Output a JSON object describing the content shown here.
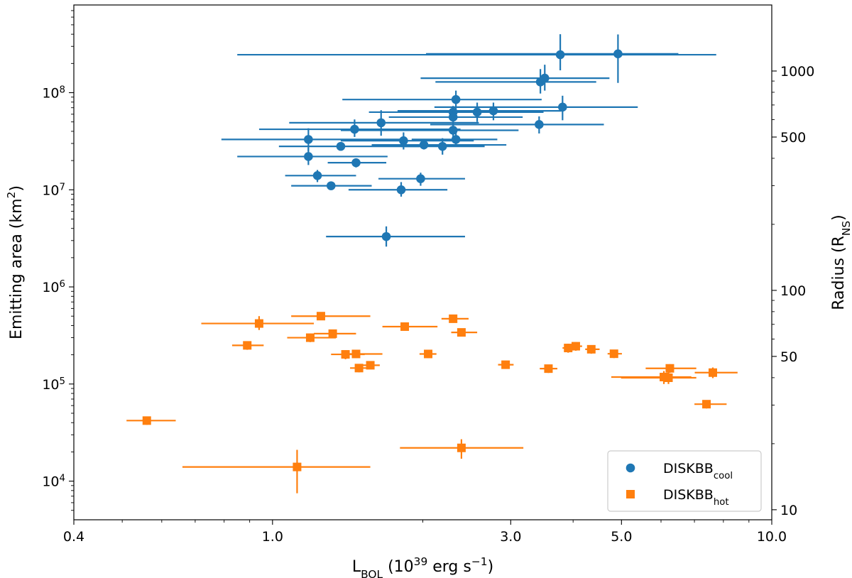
{
  "chart_data": {
    "type": "scatter",
    "xlabel": {
      "main": "L",
      "sub": "BOL",
      "rest": " (10",
      "sup": "39",
      "rest2": " erg s",
      "sup2": "−1",
      "end": ")"
    },
    "ylabel": {
      "main": "Emitting area (km",
      "sup": "2",
      "end": ")"
    },
    "y2label": {
      "main": "Radius (R",
      "sub": "NS",
      "end": ")"
    },
    "xscale": "log",
    "yscale": "log",
    "xlim": [
      0.4,
      10.0
    ],
    "ylim": [
      4000,
      800000000
    ],
    "y2lim": [
      9.0,
      2000
    ],
    "xticks": [
      0.4,
      1.0,
      3.0,
      5.0,
      10.0
    ],
    "xticklabels": [
      "0.4",
      "1.0",
      "3.0",
      "5.0",
      "10.0"
    ],
    "yticks": [
      10000,
      100000,
      1000000,
      10000000,
      100000000
    ],
    "yticklabels": [
      {
        "base": "10",
        "exp": "4"
      },
      {
        "base": "10",
        "exp": "5"
      },
      {
        "base": "10",
        "exp": "6"
      },
      {
        "base": "10",
        "exp": "7"
      },
      {
        "base": "10",
        "exp": "8"
      }
    ],
    "y2ticks": [
      10,
      50,
      100,
      500,
      1000
    ],
    "y2ticklabels": [
      "10",
      "50",
      "100",
      "500",
      "1000"
    ],
    "grid": false,
    "legend": "bottom-right",
    "series": [
      {
        "name": "DISKBB",
        "name_sub": "cool",
        "marker": "circle",
        "color": "#1f77b4",
        "points": [
          [
            3.77,
            246000000,
            0.85,
            7.74,
            170000000,
            400000000
          ],
          [
            4.92,
            251000000,
            2.03,
            6.5,
            126000000,
            398000000
          ],
          [
            3.51,
            141000000,
            1.98,
            4.73,
            105000000,
            194000000
          ],
          [
            3.44,
            129000000,
            2.12,
            4.45,
            98000000,
            175000000
          ],
          [
            2.33,
            85000000,
            1.38,
            3.46,
            66000000,
            105000000
          ],
          [
            3.81,
            71000000,
            2.11,
            5.39,
            52000000,
            93000000
          ],
          [
            2.77,
            65000000,
            1.78,
            3.79,
            52000000,
            79000000
          ],
          [
            2.57,
            63000000,
            1.83,
            3.49,
            50000000,
            79000000
          ],
          [
            2.3,
            63000000,
            1.56,
            3.42,
            53000000,
            73000000
          ],
          [
            2.3,
            56000000,
            1.71,
            3.17,
            45000000,
            70000000
          ],
          [
            1.65,
            49000000,
            1.08,
            2.59,
            36000000,
            66000000
          ],
          [
            3.42,
            47000000,
            2.07,
            4.61,
            38000000,
            57000000
          ],
          [
            1.46,
            42000000,
            0.94,
            2.38,
            35000000,
            53000000
          ],
          [
            2.3,
            41000000,
            1.37,
            3.11,
            35000000,
            48000000
          ],
          [
            1.18,
            33000000,
            0.79,
            1.86,
            25000000,
            43000000
          ],
          [
            1.83,
            32000000,
            1.37,
            2.53,
            26000000,
            39000000
          ],
          [
            2.33,
            33000000,
            1.9,
            2.82,
            28000000,
            39000000
          ],
          [
            1.37,
            28000000,
            1.03,
            1.97,
            26000000,
            31000000
          ],
          [
            2.01,
            29000000,
            1.58,
            2.94,
            26000000,
            32000000
          ],
          [
            2.19,
            28000000,
            1.81,
            2.66,
            23000000,
            34000000
          ],
          [
            1.18,
            22000000,
            0.85,
            1.7,
            18000000,
            27000000
          ],
          [
            1.47,
            19000000,
            1.29,
            1.69,
            17000000,
            20000000
          ],
          [
            1.23,
            14000000,
            1.06,
            1.47,
            12000000,
            16000000
          ],
          [
            1.98,
            13000000,
            1.63,
            2.43,
            11000000,
            15000000
          ],
          [
            1.31,
            11000000,
            1.09,
            1.58,
            10000000,
            12000000
          ],
          [
            1.81,
            10000000,
            1.42,
            2.24,
            8500000,
            12000000
          ],
          [
            1.69,
            3300000,
            1.28,
            2.43,
            2600000,
            4200000
          ]
        ]
      },
      {
        "name": "DISKBB",
        "name_sub": "hot",
        "marker": "square",
        "color": "#ff7f0e",
        "points": [
          [
            1.25,
            500000,
            1.09,
            1.57,
            455000,
            550000
          ],
          [
            2.3,
            470000,
            2.18,
            2.47,
            430000,
            510000
          ],
          [
            0.94,
            420000,
            0.72,
            1.21,
            360000,
            500000
          ],
          [
            1.84,
            390000,
            1.66,
            2.14,
            360000,
            420000
          ],
          [
            2.39,
            340000,
            2.28,
            2.57,
            310000,
            370000
          ],
          [
            1.32,
            330000,
            1.21,
            1.47,
            300000,
            360000
          ],
          [
            1.19,
            300000,
            1.07,
            1.34,
            270000,
            330000
          ],
          [
            0.89,
            250000,
            0.83,
            0.96,
            225000,
            275000
          ],
          [
            4.05,
            245000,
            3.95,
            4.17,
            220000,
            270000
          ],
          [
            3.91,
            235000,
            3.81,
            4.04,
            210000,
            260000
          ],
          [
            4.35,
            228000,
            4.23,
            4.52,
            205000,
            250000
          ],
          [
            4.83,
            205000,
            4.69,
            5.01,
            185000,
            225000
          ],
          [
            1.47,
            204000,
            1.38,
            1.66,
            185000,
            225000
          ],
          [
            1.4,
            202000,
            1.31,
            1.53,
            180000,
            222000
          ],
          [
            2.05,
            204000,
            1.97,
            2.13,
            185000,
            225000
          ],
          [
            2.93,
            158000,
            2.83,
            3.04,
            145000,
            172000
          ],
          [
            1.57,
            156000,
            1.48,
            1.64,
            142000,
            170000
          ],
          [
            1.49,
            146000,
            1.43,
            1.57,
            132000,
            160000
          ],
          [
            3.57,
            144000,
            3.43,
            3.72,
            130000,
            158000
          ],
          [
            6.25,
            145000,
            5.59,
            7.06,
            130000,
            160000
          ],
          [
            7.62,
            131000,
            7.01,
            8.54,
            115000,
            148000
          ],
          [
            6.08,
            118000,
            4.77,
            6.9,
            100000,
            136000
          ],
          [
            6.21,
            116000,
            4.99,
            7.06,
            100000,
            132000
          ],
          [
            7.4,
            62000,
            7.0,
            8.12,
            56000,
            68000
          ],
          [
            0.56,
            42000,
            0.51,
            0.64,
            38000,
            46000
          ],
          [
            2.39,
            22000,
            1.8,
            3.18,
            17000,
            27000
          ],
          [
            1.12,
            14000,
            0.66,
            1.57,
            7500,
            21000
          ]
        ]
      }
    ]
  }
}
